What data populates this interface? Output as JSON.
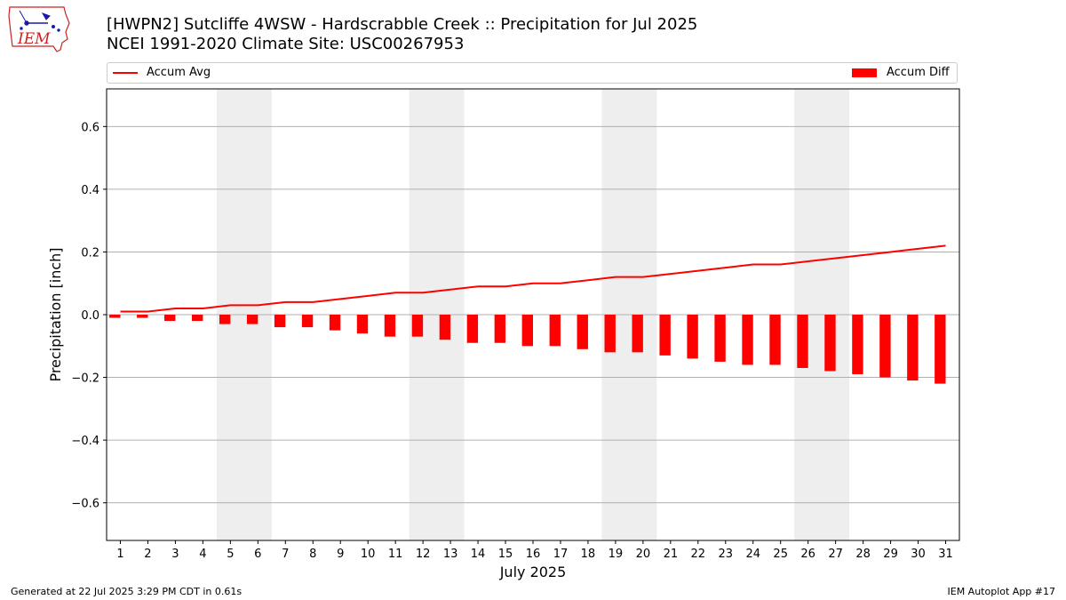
{
  "logo": {
    "text": "IEM"
  },
  "title": {
    "line1": "[HWPN2] Sutcliffe 4WSW - Hardscrabble Creek :: Precipitation for Jul 2025",
    "line2": "NCEI 1991-2020 Climate Site: USC00267953"
  },
  "colors": {
    "series": "#ff0000",
    "weekend_band": "#eeeeee",
    "grid": "#b0b0b0"
  },
  "footer": {
    "left": "Generated at 22 Jul 2025 3:29 PM CDT in 0.61s",
    "right": "IEM Autoplot App #17"
  },
  "chart_data": {
    "type": "bar",
    "xlabel": "July 2025",
    "ylabel": "Precipitation [inch]",
    "ylim": [
      -0.72,
      0.72
    ],
    "yticks": [
      -0.6,
      -0.4,
      -0.2,
      0.0,
      0.2,
      0.4,
      0.6
    ],
    "ytick_labels": [
      "−0.6",
      "−0.4",
      "−0.2",
      "0.0",
      "0.2",
      "0.4",
      "0.6"
    ],
    "grid": "y",
    "legend_placement": "top",
    "categories": [
      "1",
      "2",
      "3",
      "4",
      "5",
      "6",
      "7",
      "8",
      "9",
      "10",
      "11",
      "12",
      "13",
      "14",
      "15",
      "16",
      "17",
      "18",
      "19",
      "20",
      "21",
      "22",
      "23",
      "24",
      "25",
      "26",
      "27",
      "28",
      "29",
      "30",
      "31"
    ],
    "weekend_bands": [
      [
        5,
        6
      ],
      [
        12,
        13
      ],
      [
        19,
        20
      ],
      [
        26,
        27
      ]
    ],
    "series": [
      {
        "name": "Accum Avg",
        "type": "line",
        "values": [
          0.01,
          0.01,
          0.02,
          0.02,
          0.03,
          0.03,
          0.04,
          0.04,
          0.05,
          0.06,
          0.07,
          0.07,
          0.08,
          0.09,
          0.09,
          0.1,
          0.1,
          0.11,
          0.12,
          0.12,
          0.13,
          0.14,
          0.15,
          0.16,
          0.16,
          0.17,
          0.18,
          0.19,
          0.2,
          0.21,
          0.22
        ]
      },
      {
        "name": "Accum Diff",
        "type": "bar",
        "values": [
          -0.01,
          -0.01,
          -0.02,
          -0.02,
          -0.03,
          -0.03,
          -0.04,
          -0.04,
          -0.05,
          -0.06,
          -0.07,
          -0.07,
          -0.08,
          -0.09,
          -0.09,
          -0.1,
          -0.1,
          -0.11,
          -0.12,
          -0.12,
          -0.13,
          -0.14,
          -0.15,
          -0.16,
          -0.16,
          -0.17,
          -0.18,
          -0.19,
          -0.2,
          -0.21,
          -0.22
        ]
      }
    ]
  }
}
